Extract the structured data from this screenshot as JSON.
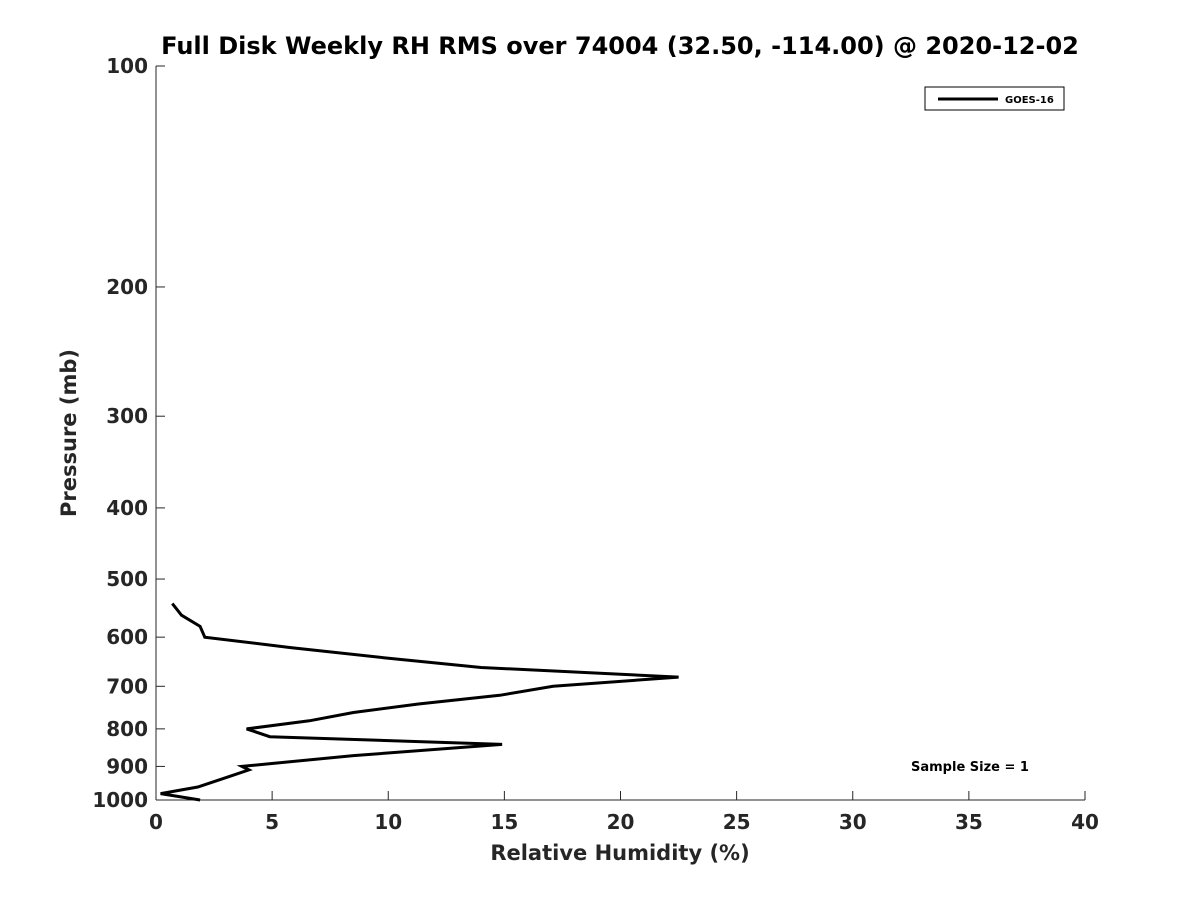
{
  "chart_data": {
    "type": "line",
    "title": "Full Disk Weekly RH RMS over 74004 (32.50, -114.00) @ 2020-12-02",
    "xlabel": "Relative Humidity (%)",
    "ylabel": "Pressure (mb)",
    "xlim": [
      0,
      40
    ],
    "ylim": [
      100,
      1000
    ],
    "y_scale": "log",
    "y_reversed": true,
    "x_ticks": [
      0,
      5,
      10,
      15,
      20,
      25,
      30,
      35,
      40
    ],
    "y_ticks": [
      100,
      200,
      300,
      400,
      500,
      600,
      700,
      800,
      900,
      1000
    ],
    "grid": false,
    "legend_position": "top-right",
    "series": [
      {
        "name": "GOES-16",
        "color": "#000000",
        "points": [
          {
            "x": 0.7,
            "y": 540
          },
          {
            "x": 1.1,
            "y": 560
          },
          {
            "x": 1.9,
            "y": 580
          },
          {
            "x": 2.1,
            "y": 600
          },
          {
            "x": 5.8,
            "y": 620
          },
          {
            "x": 9.8,
            "y": 640
          },
          {
            "x": 14.0,
            "y": 660
          },
          {
            "x": 22.5,
            "y": 680
          },
          {
            "x": 17.1,
            "y": 700
          },
          {
            "x": 14.8,
            "y": 720
          },
          {
            "x": 11.3,
            "y": 740
          },
          {
            "x": 8.5,
            "y": 760
          },
          {
            "x": 6.6,
            "y": 780
          },
          {
            "x": 3.9,
            "y": 800
          },
          {
            "x": 4.9,
            "y": 820
          },
          {
            "x": 14.9,
            "y": 840
          },
          {
            "x": 8.5,
            "y": 870
          },
          {
            "x": 3.7,
            "y": 900
          },
          {
            "x": 4.0,
            "y": 910
          },
          {
            "x": 3.1,
            "y": 930
          },
          {
            "x": 1.8,
            "y": 960
          },
          {
            "x": 0.2,
            "y": 980
          },
          {
            "x": 1.9,
            "y": 1000
          }
        ]
      }
    ],
    "annotations": [
      "Sample Size = 1"
    ]
  }
}
